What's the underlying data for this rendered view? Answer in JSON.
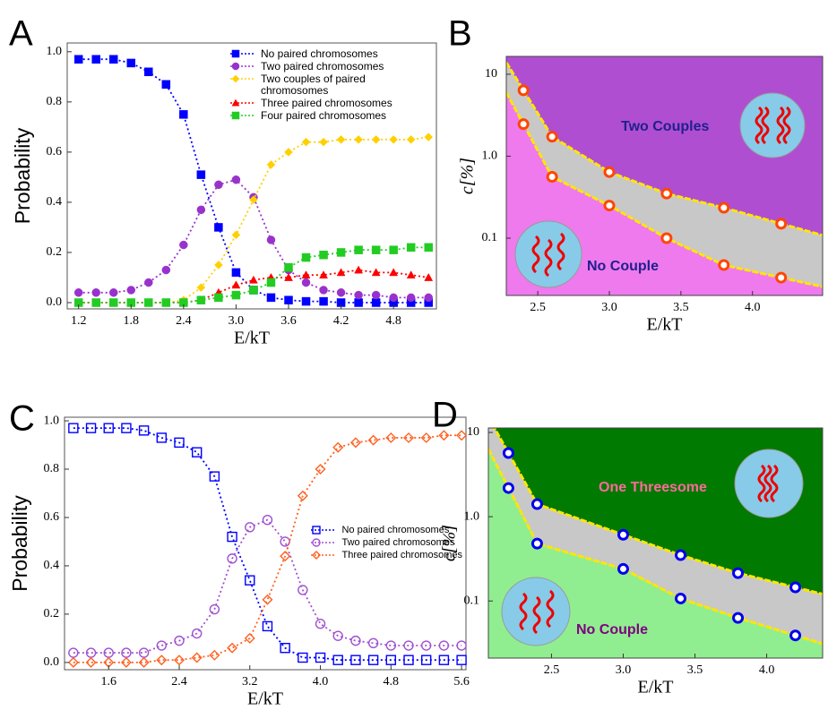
{
  "chart_data": [
    {
      "type": "line",
      "panel_label": "A",
      "xlabel": "E/kT",
      "ylabel": "Probability",
      "x": [
        1.2,
        1.4,
        1.6,
        1.8,
        2.0,
        2.2,
        2.4,
        2.6,
        2.8,
        3.0,
        3.2,
        3.4,
        3.6,
        3.8,
        4.0,
        4.2,
        4.4,
        4.6,
        4.8,
        5.0,
        5.2
      ],
      "xlim": [
        1.07,
        5.29
      ],
      "ylim": [
        -0.025,
        1.035
      ],
      "xticks": [
        1.2,
        1.8,
        2.4,
        {
          "value": 3,
          "label": "3.0"
        },
        3.6,
        4.2,
        4.8
      ],
      "yticks": [
        {
          "value": 0,
          "label": "0.0"
        },
        0.2,
        0.4,
        0.6,
        0.8,
        {
          "value": 1,
          "label": "1.0"
        }
      ],
      "linestyle": "dotted",
      "legend": "upper right",
      "series": [
        {
          "name": "No paired chromosomes",
          "color": "#0000ff",
          "marker": "square",
          "filled": true,
          "values": [
            0.97,
            0.97,
            0.97,
            0.955,
            0.92,
            0.87,
            0.75,
            0.51,
            0.3,
            0.12,
            0.05,
            0.02,
            0.01,
            0.005,
            0.005,
            0,
            0,
            0,
            0,
            0,
            0
          ]
        },
        {
          "name": "Two paired chromosomes",
          "color": "#9932cc",
          "marker": "circle",
          "filled": true,
          "values": [
            0.04,
            0.04,
            0.04,
            0.05,
            0.08,
            0.13,
            0.23,
            0.37,
            0.47,
            0.49,
            0.42,
            0.25,
            0.13,
            0.08,
            0.05,
            0.04,
            0.03,
            0.03,
            0.02,
            0.02,
            0.02
          ]
        },
        {
          "name": "Two couples of paired chromosomes",
          "color": "#ffd000",
          "marker": "diamond",
          "filled": true,
          "values": [
            0,
            0,
            0,
            0,
            0,
            0,
            0.01,
            0.06,
            0.15,
            0.27,
            0.41,
            0.55,
            0.6,
            0.64,
            0.64,
            0.65,
            0.65,
            0.65,
            0.65,
            0.65,
            0.66
          ]
        },
        {
          "name": "Three paired chromosomes",
          "color": "#ff0000",
          "marker": "triangle",
          "filled": true,
          "values": [
            0,
            0,
            0,
            0,
            0,
            0,
            0,
            0.01,
            0.04,
            0.07,
            0.09,
            0.1,
            0.1,
            0.11,
            0.11,
            0.12,
            0.13,
            0.12,
            0.12,
            0.11,
            0.1
          ]
        },
        {
          "name": "Four paired chromosomes",
          "color": "#22cc22",
          "marker": "square",
          "filled": true,
          "values": [
            0,
            0,
            0,
            0,
            0,
            0,
            0,
            0.01,
            0.02,
            0.03,
            0.05,
            0.08,
            0.14,
            0.18,
            0.19,
            0.2,
            0.21,
            0.21,
            0.21,
            0.22,
            0.22
          ]
        }
      ]
    },
    {
      "type": "phase",
      "panel_label": "B",
      "xlabel": "E/kT",
      "ylabel": "c[%]",
      "yscale": "log",
      "x": [
        2.4,
        2.6,
        3.0,
        3.4,
        3.8,
        4.2
      ],
      "xlim": [
        2.28,
        4.49
      ],
      "ylim": [
        0.02,
        16.5
      ],
      "xticks": [
        2.5,
        {
          "value": 3,
          "label": "3.0"
        },
        3.5,
        {
          "value": 4,
          "label": "4.0"
        }
      ],
      "yticks": [
        10,
        {
          "value": 1,
          "label": "1.0"
        },
        0.1
      ],
      "boundary_color": "#ffe600",
      "region_colors": [
        "#b04ed2",
        "#c8c8c8",
        "#ee7aee"
      ],
      "series": [
        {
          "color": "#ff4500",
          "values": [
            6.37,
            1.73,
            0.64,
            0.35,
            0.235,
            0.15
          ]
        },
        {
          "color": "#ff4500",
          "values": [
            2.46,
            0.56,
            0.25,
            0.1,
            0.047,
            0.033
          ]
        }
      ],
      "annotations": [
        "Two Couples",
        "No Couple"
      ]
    },
    {
      "type": "line",
      "panel_label": "C",
      "xlabel": "E/kT",
      "ylabel": "Probability",
      "x": [
        1.2,
        1.4,
        1.6,
        1.8,
        2.0,
        2.2,
        2.4,
        2.6,
        2.8,
        3.0,
        3.2,
        3.4,
        3.6,
        3.8,
        4.0,
        4.2,
        4.4,
        4.6,
        4.8,
        5.0,
        5.2,
        5.4,
        5.6
      ],
      "xlim": [
        1.1,
        5.65
      ],
      "ylim": [
        -0.03,
        1.015
      ],
      "xticks": [
        1.6,
        2.4,
        3.2,
        {
          "value": 4,
          "label": "4.0"
        },
        4.8,
        5.6
      ],
      "yticks": [
        {
          "value": 0,
          "label": "0.0"
        },
        0.2,
        0.4,
        0.6,
        0.8,
        {
          "value": 1,
          "label": "1.0"
        }
      ],
      "linestyle": "dotted",
      "legend": "center right",
      "series": [
        {
          "name": "No paired chromosomes",
          "color": "#0000ff",
          "marker": "square",
          "filled": false,
          "values": [
            0.97,
            0.97,
            0.97,
            0.97,
            0.96,
            0.93,
            0.91,
            0.87,
            0.77,
            0.52,
            0.34,
            0.15,
            0.06,
            0.02,
            0.02,
            0.01,
            0.01,
            0.01,
            0.01,
            0.01,
            0.01,
            0.01,
            0.01
          ]
        },
        {
          "name": "Two paired chromosomes",
          "color": "#a050d0",
          "marker": "circle",
          "filled": false,
          "values": [
            0.04,
            0.04,
            0.04,
            0.04,
            0.04,
            0.07,
            0.09,
            0.12,
            0.22,
            0.43,
            0.56,
            0.59,
            0.5,
            0.3,
            0.16,
            0.11,
            0.09,
            0.08,
            0.07,
            0.07,
            0.07,
            0.07,
            0.07
          ]
        },
        {
          "name": "Three paired chromosomes",
          "color": "#ff6020",
          "marker": "diamond",
          "filled": false,
          "values": [
            0,
            0,
            0,
            0,
            0,
            0.01,
            0.01,
            0.02,
            0.03,
            0.06,
            0.1,
            0.26,
            0.44,
            0.69,
            0.8,
            0.89,
            0.91,
            0.92,
            0.93,
            0.93,
            0.93,
            0.94,
            0.94
          ]
        }
      ]
    },
    {
      "type": "phase",
      "panel_label": "D",
      "xlabel": "E/kT",
      "ylabel": "c[%]",
      "yscale": "log",
      "x": [
        2.2,
        2.4,
        3.0,
        3.4,
        3.8,
        4.2
      ],
      "xlim": [
        2.06,
        4.39
      ],
      "ylim": [
        0.021,
        11.3
      ],
      "xticks": [
        2.5,
        {
          "value": 3,
          "label": "3.0"
        },
        3.5,
        {
          "value": 4,
          "label": "4.0"
        }
      ],
      "yticks": [
        10,
        {
          "value": 1,
          "label": "1.0"
        },
        0.1
      ],
      "boundary_color": "#ffe600",
      "region_colors": [
        "#007a00",
        "#c8c8c8",
        "#90ee90"
      ],
      "series": [
        {
          "color": "#0000ee",
          "values": [
            5.7,
            1.41,
            0.61,
            0.35,
            0.214,
            0.145
          ]
        },
        {
          "color": "#0000ee",
          "values": [
            2.19,
            0.48,
            0.24,
            0.107,
            0.063,
            0.039
          ]
        }
      ],
      "annotations": [
        "One Threesome",
        "No Couple"
      ]
    }
  ]
}
